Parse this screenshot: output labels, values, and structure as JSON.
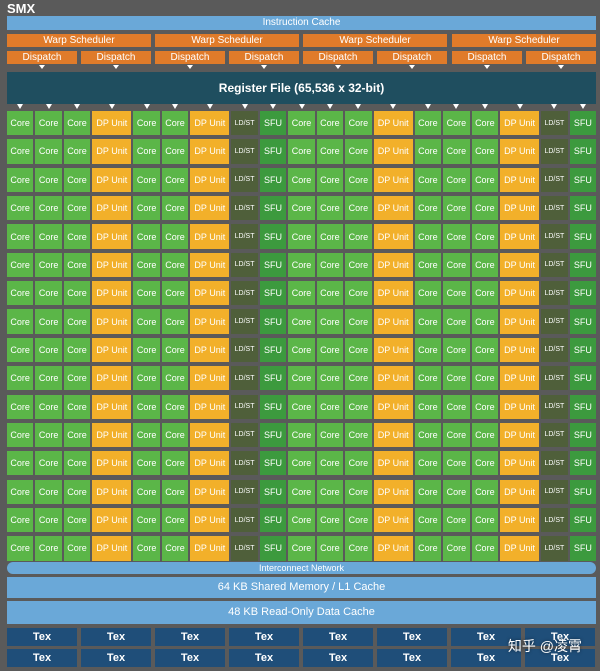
{
  "title": "SMX",
  "instruction_cache": "Instruction Cache",
  "warp_scheduler_label": "Warp Scheduler",
  "dispatch_label": "Dispatch",
  "register_file": "Register File (65,536 x 32-bit)",
  "unit_labels": {
    "core": "Core",
    "dp": "DP Unit",
    "ldst": "LD/ST",
    "sfu": "SFU"
  },
  "rows": 16,
  "column_pattern": [
    "core",
    "core",
    "core",
    "dp",
    "core",
    "core",
    "dp",
    "ldst",
    "sfu",
    "core",
    "core",
    "core",
    "dp",
    "core",
    "core",
    "core",
    "dp",
    "ldst",
    "sfu"
  ],
  "interconnect": "Interconnect Network",
  "shared_memory": "64 KB Shared Memory / L1 Cache",
  "readonly_cache": "48 KB Read-Only Data Cache",
  "tex_label": "Tex",
  "watermark": "知乎 @凌霄",
  "colors": {
    "core": "#5bb648",
    "dp": "#f2b02a",
    "ldst": "#4f5f3a",
    "sfu": "#3c9a3e",
    "cache": "#6aa8d8",
    "register": "#1f4e5f",
    "scheduler": "#e07b2a",
    "tex": "#1f4e79"
  }
}
